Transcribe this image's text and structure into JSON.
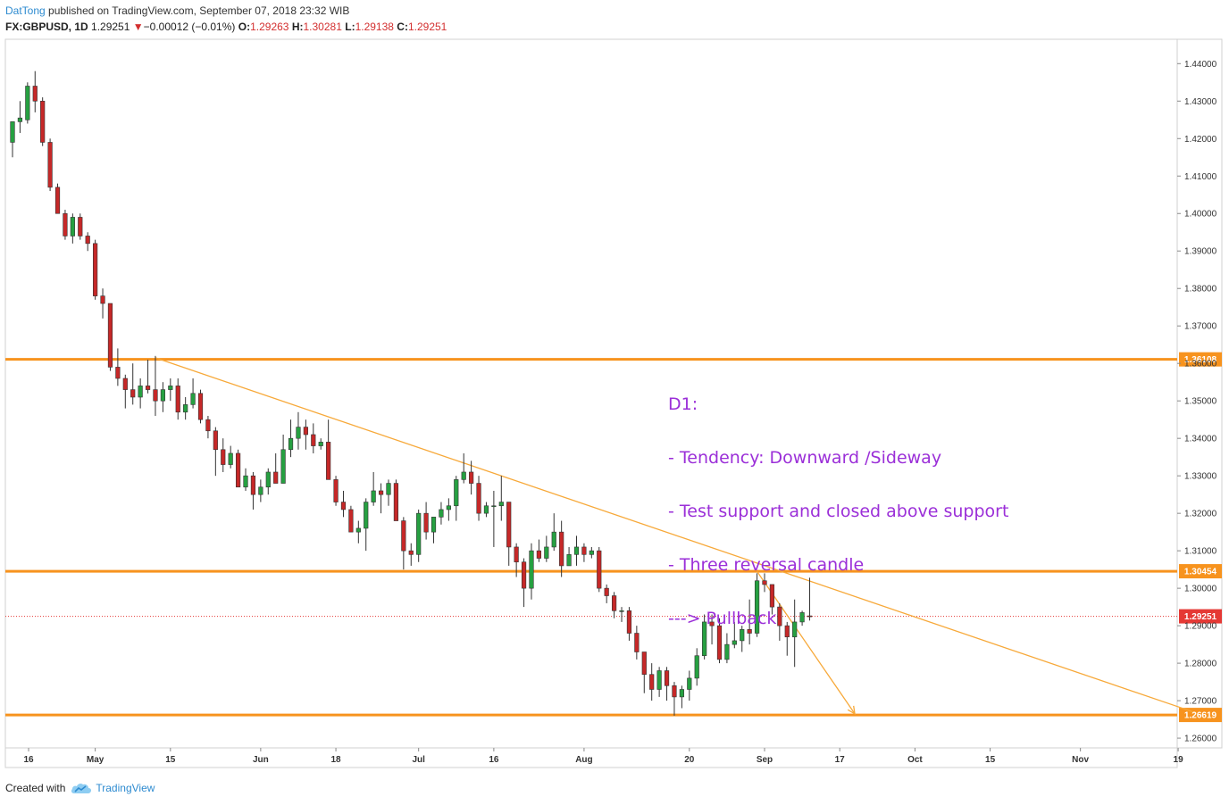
{
  "header": {
    "author": "DatTong",
    "published": " published on TradingView.com, September 07, 2018 23:32 WIB"
  },
  "symbol_line": {
    "symbol": "FX:GBPUSD, 1D",
    "last": "1.29251",
    "arrow": "▼",
    "change": "−0.00012 (−0.01%)",
    "o_label": "O:",
    "o_value": "1.29263",
    "h_label": "H:",
    "h_value": "1.30281",
    "l_label": "L:",
    "l_value": "1.29138",
    "c_label": "C:",
    "c_value": "1.29251"
  },
  "annotation": {
    "lines": [
      "D1:",
      "- Tendency: Downward /Sideway",
      "- Test support and closed above support",
      "- Three reversal candle",
      "---> Pullback"
    ]
  },
  "footer": {
    "created_with": "Created with",
    "brand": "TradingView"
  },
  "colors": {
    "up": "#26a041",
    "down": "#c62828",
    "level": "#f7931e",
    "trend": "#f7a93a",
    "annotation": "#9b2fd8",
    "price_badge": "#e53935"
  },
  "chart_data": {
    "type": "candlestick",
    "symbol": "FX:GBPUSD",
    "interval": "1D",
    "ylim": [
      1.2574,
      1.4465
    ],
    "y_ticks": [
      "1.44000",
      "1.43000",
      "1.42000",
      "1.41000",
      "1.40000",
      "1.39000",
      "1.38000",
      "1.37000",
      "1.36000",
      "1.35000",
      "1.34000",
      "1.33000",
      "1.32000",
      "1.31000",
      "1.30000",
      "1.29000",
      "1.28000",
      "1.27000",
      "1.26000"
    ],
    "y_tick_values": [
      1.44,
      1.43,
      1.42,
      1.41,
      1.4,
      1.39,
      1.38,
      1.37,
      1.36,
      1.35,
      1.34,
      1.33,
      1.32,
      1.31,
      1.3,
      1.29,
      1.28,
      1.27,
      1.26
    ],
    "x_ticks": [
      {
        "label": "16",
        "index": 0
      },
      {
        "label": "May",
        "index": 11
      },
      {
        "label": "15",
        "index": 21
      },
      {
        "label": "Jun",
        "index": 33
      },
      {
        "label": "18",
        "index": 43
      },
      {
        "label": "Jul",
        "index": 54
      },
      {
        "label": "16",
        "index": 64
      },
      {
        "label": "Aug",
        "index": 76
      },
      {
        "label": "20",
        "index": 90
      },
      {
        "label": "Sep",
        "index": 100
      },
      {
        "label": "17",
        "index": 110
      },
      {
        "label": "Oct",
        "index": 120
      },
      {
        "label": "15",
        "index": 130
      },
      {
        "label": "Nov",
        "index": 142
      },
      {
        "label": "19",
        "index": 155
      }
    ],
    "levels": [
      {
        "value": 1.36108,
        "label": "1.36108"
      },
      {
        "value": 1.30454,
        "label": "1.30454"
      },
      {
        "value": 1.26619,
        "label": "1.26619"
      }
    ],
    "current_price": {
      "value": 1.29251,
      "label": "1.29251"
    },
    "trendline": {
      "start": {
        "index": 19,
        "price": 1.3615
      },
      "end": {
        "index": 157,
        "price": 1.267
      }
    },
    "projection_arrow": {
      "start": {
        "index": 99,
        "price": 1.3045
      },
      "end": {
        "index": 112,
        "price": 1.2665
      }
    },
    "candles": [
      [
        1.419,
        1.4245,
        1.415,
        1.4245
      ],
      [
        1.4245,
        1.43,
        1.4215,
        1.4255
      ],
      [
        1.425,
        1.435,
        1.424,
        1.434
      ],
      [
        1.434,
        1.438,
        1.427,
        1.43
      ],
      [
        1.43,
        1.431,
        1.418,
        1.419
      ],
      [
        1.419,
        1.42,
        1.406,
        1.407
      ],
      [
        1.407,
        1.408,
        1.4,
        1.4
      ],
      [
        1.4,
        1.401,
        1.393,
        1.394
      ],
      [
        1.394,
        1.4,
        1.392,
        1.399
      ],
      [
        1.399,
        1.4,
        1.393,
        1.394
      ],
      [
        1.394,
        1.395,
        1.39,
        1.392
      ],
      [
        1.392,
        1.393,
        1.377,
        1.378
      ],
      [
        1.378,
        1.38,
        1.372,
        1.376
      ],
      [
        1.376,
        1.376,
        1.358,
        1.359
      ],
      [
        1.359,
        1.364,
        1.354,
        1.356
      ],
      [
        1.356,
        1.357,
        1.348,
        1.353
      ],
      [
        1.353,
        1.36,
        1.349,
        1.351
      ],
      [
        1.351,
        1.356,
        1.348,
        1.354
      ],
      [
        1.354,
        1.361,
        1.352,
        1.353
      ],
      [
        1.353,
        1.362,
        1.346,
        1.35
      ],
      [
        1.35,
        1.355,
        1.347,
        1.353
      ],
      [
        1.353,
        1.356,
        1.35,
        1.354
      ],
      [
        1.354,
        1.356,
        1.345,
        1.347
      ],
      [
        1.347,
        1.351,
        1.345,
        1.349
      ],
      [
        1.349,
        1.356,
        1.348,
        1.352
      ],
      [
        1.352,
        1.353,
        1.344,
        1.345
      ],
      [
        1.345,
        1.346,
        1.34,
        1.342
      ],
      [
        1.342,
        1.343,
        1.33,
        1.337
      ],
      [
        1.337,
        1.34,
        1.331,
        1.333
      ],
      [
        1.333,
        1.338,
        1.332,
        1.336
      ],
      [
        1.336,
        1.337,
        1.327,
        1.327
      ],
      [
        1.327,
        1.332,
        1.326,
        1.33
      ],
      [
        1.33,
        1.331,
        1.321,
        1.325
      ],
      [
        1.325,
        1.329,
        1.323,
        1.327
      ],
      [
        1.327,
        1.332,
        1.325,
        1.331
      ],
      [
        1.331,
        1.336,
        1.328,
        1.328
      ],
      [
        1.328,
        1.341,
        1.328,
        1.337
      ],
      [
        1.337,
        1.345,
        1.335,
        1.34
      ],
      [
        1.34,
        1.347,
        1.337,
        1.343
      ],
      [
        1.343,
        1.345,
        1.337,
        1.341
      ],
      [
        1.341,
        1.344,
        1.336,
        1.338
      ],
      [
        1.338,
        1.34,
        1.337,
        1.339
      ],
      [
        1.339,
        1.345,
        1.329,
        1.329
      ],
      [
        1.329,
        1.33,
        1.322,
        1.323
      ],
      [
        1.323,
        1.326,
        1.319,
        1.321
      ],
      [
        1.321,
        1.322,
        1.315,
        1.315
      ],
      [
        1.315,
        1.318,
        1.312,
        1.316
      ],
      [
        1.316,
        1.324,
        1.31,
        1.323
      ],
      [
        1.323,
        1.331,
        1.322,
        1.326
      ],
      [
        1.326,
        1.328,
        1.32,
        1.325
      ],
      [
        1.325,
        1.329,
        1.322,
        1.328
      ],
      [
        1.328,
        1.329,
        1.318,
        1.318
      ],
      [
        1.318,
        1.319,
        1.305,
        1.31
      ],
      [
        1.31,
        1.312,
        1.306,
        1.309
      ],
      [
        1.309,
        1.321,
        1.307,
        1.32
      ],
      [
        1.32,
        1.323,
        1.313,
        1.315
      ],
      [
        1.315,
        1.319,
        1.312,
        1.319
      ],
      [
        1.319,
        1.323,
        1.317,
        1.321
      ],
      [
        1.321,
        1.324,
        1.318,
        1.322
      ],
      [
        1.322,
        1.33,
        1.318,
        1.329
      ],
      [
        1.329,
        1.336,
        1.328,
        1.331
      ],
      [
        1.331,
        1.334,
        1.325,
        1.328
      ],
      [
        1.328,
        1.33,
        1.318,
        1.32
      ],
      [
        1.32,
        1.323,
        1.319,
        1.322
      ],
      [
        1.322,
        1.326,
        1.311,
        1.322
      ],
      [
        1.322,
        1.33,
        1.318,
        1.323
      ],
      [
        1.323,
        1.323,
        1.306,
        1.311
      ],
      [
        1.311,
        1.312,
        1.303,
        1.307
      ],
      [
        1.307,
        1.308,
        1.295,
        1.3
      ],
      [
        1.3,
        1.312,
        1.297,
        1.31
      ],
      [
        1.31,
        1.313,
        1.307,
        1.308
      ],
      [
        1.308,
        1.314,
        1.307,
        1.311
      ],
      [
        1.311,
        1.32,
        1.31,
        1.315
      ],
      [
        1.315,
        1.318,
        1.303,
        1.306
      ],
      [
        1.306,
        1.311,
        1.306,
        1.309
      ],
      [
        1.309,
        1.314,
        1.306,
        1.311
      ],
      [
        1.311,
        1.312,
        1.307,
        1.309
      ],
      [
        1.309,
        1.311,
        1.308,
        1.31
      ],
      [
        1.31,
        1.311,
        1.299,
        1.3
      ],
      [
        1.3,
        1.301,
        1.296,
        1.298
      ],
      [
        1.298,
        1.299,
        1.292,
        1.294
      ],
      [
        1.294,
        1.295,
        1.291,
        1.294
      ],
      [
        1.294,
        1.295,
        1.286,
        1.288
      ],
      [
        1.288,
        1.29,
        1.281,
        1.283
      ],
      [
        1.283,
        1.283,
        1.272,
        1.277
      ],
      [
        1.277,
        1.28,
        1.27,
        1.273
      ],
      [
        1.273,
        1.279,
        1.271,
        1.278
      ],
      [
        1.278,
        1.279,
        1.27,
        1.274
      ],
      [
        1.274,
        1.275,
        1.266,
        1.271
      ],
      [
        1.271,
        1.274,
        1.268,
        1.273
      ],
      [
        1.273,
        1.278,
        1.27,
        1.276
      ],
      [
        1.276,
        1.284,
        1.274,
        1.282
      ],
      [
        1.282,
        1.293,
        1.281,
        1.291
      ],
      [
        1.291,
        1.293,
        1.285,
        1.29
      ],
      [
        1.29,
        1.292,
        1.28,
        1.281
      ],
      [
        1.281,
        1.288,
        1.28,
        1.285
      ],
      [
        1.285,
        1.291,
        1.284,
        1.286
      ],
      [
        1.286,
        1.29,
        1.283,
        1.289
      ],
      [
        1.289,
        1.297,
        1.285,
        1.288
      ],
      [
        1.288,
        1.304,
        1.287,
        1.302
      ],
      [
        1.302,
        1.304,
        1.299,
        1.301
      ],
      [
        1.301,
        1.301,
        1.293,
        1.295
      ],
      [
        1.295,
        1.296,
        1.286,
        1.29
      ],
      [
        1.29,
        1.291,
        1.282,
        1.287
      ],
      [
        1.287,
        1.297,
        1.279,
        1.291
      ],
      [
        1.291,
        1.294,
        1.29,
        1.2935
      ],
      [
        1.29263,
        1.30281,
        1.29138,
        1.29251
      ]
    ]
  }
}
